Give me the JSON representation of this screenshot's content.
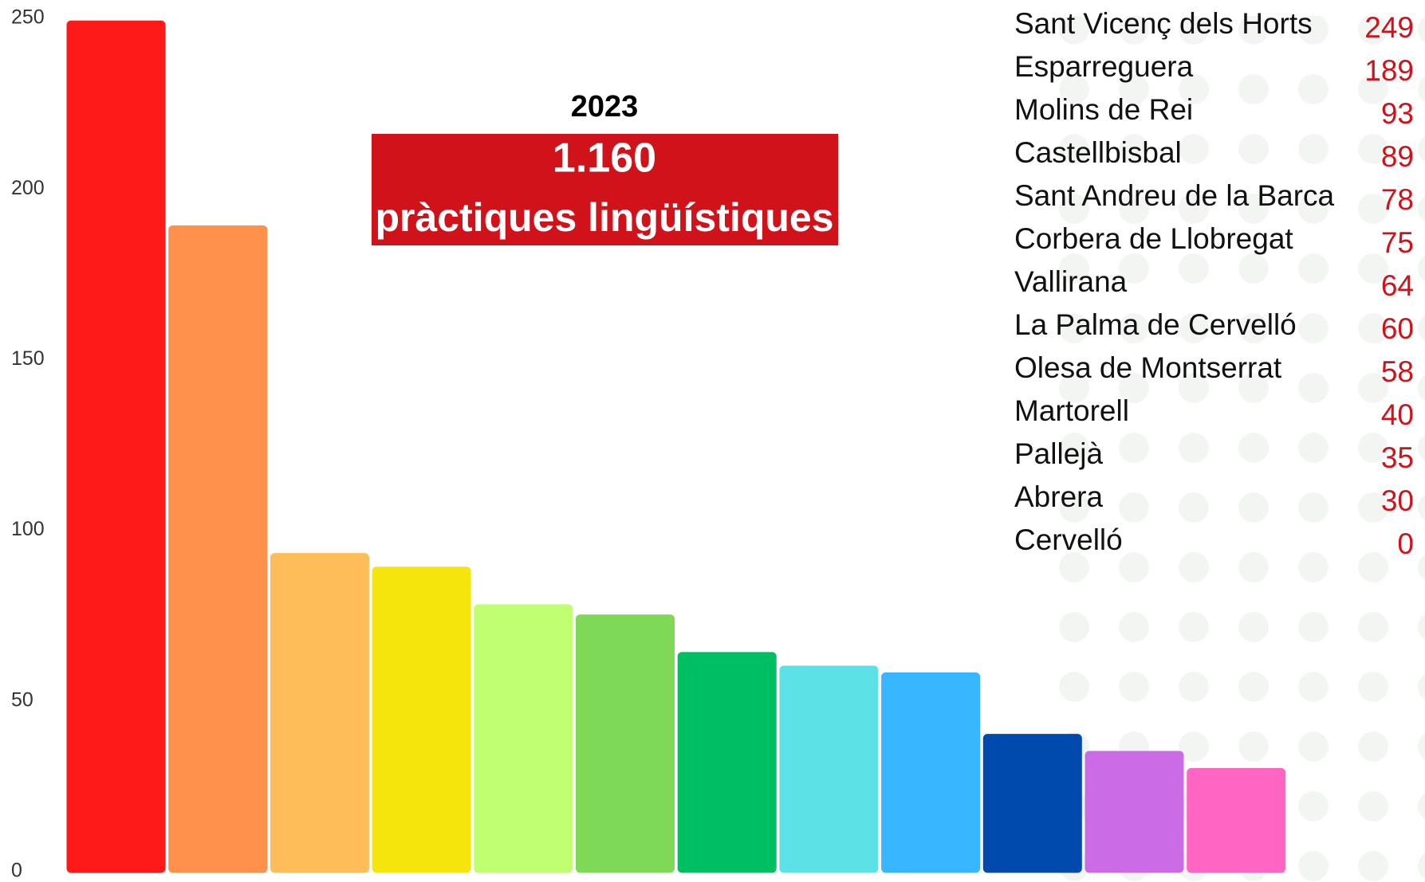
{
  "chart_data": {
    "type": "bar",
    "categories": [
      "Sant Vicenç dels Horts",
      "Esparreguera",
      "Molins de Rei",
      "Castellbisbal",
      "Sant Andreu de la Barca",
      "Corbera de Llobregat",
      "Vallirana",
      "La Palma de Cervelló",
      "Olesa de Montserrat",
      "Martorell",
      "Pallejà",
      "Abrera",
      "Cervelló"
    ],
    "values": [
      249,
      189,
      93,
      89,
      78,
      75,
      64,
      60,
      58,
      40,
      35,
      30,
      0
    ],
    "colors": [
      "#ff1a1a",
      "#ff914d",
      "#ffbd59",
      "#f5e50d",
      "#c1ff72",
      "#7ed957",
      "#00bf63",
      "#5ce1e6",
      "#38b6ff",
      "#004aad",
      "#cb6ce6",
      "#ff66c4",
      "#000000"
    ],
    "ylim": [
      0,
      250
    ],
    "yticks": [
      0,
      50,
      100,
      150,
      200,
      250
    ],
    "annotations": [
      "2023",
      "1.160",
      "pràctiques lingüístiques"
    ]
  }
}
